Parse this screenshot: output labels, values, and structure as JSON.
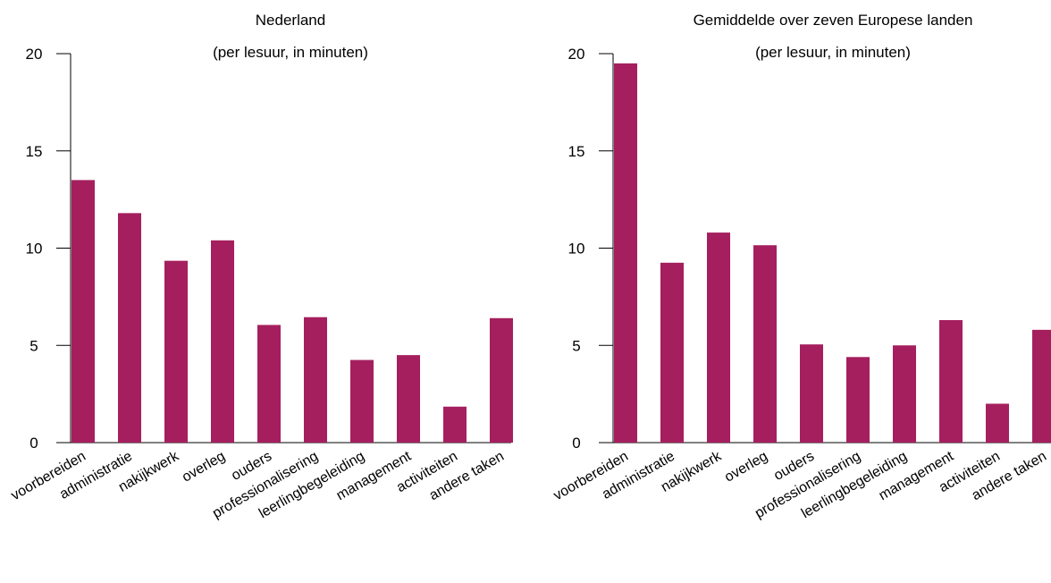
{
  "colors": {
    "bar": "#a51f5e"
  },
  "chart_data": [
    {
      "type": "bar",
      "title": "Nederland",
      "subtitle": "(per lesuur, in minuten)",
      "categories": [
        "voorbereiden",
        "administratie",
        "nakijkwerk",
        "overleg",
        "ouders",
        "professionalisering",
        "leerlingbegeleiding",
        "management",
        "activiteiten",
        "andere taken"
      ],
      "values": [
        13.5,
        11.8,
        9.35,
        10.4,
        6.05,
        6.45,
        4.25,
        4.5,
        1.85,
        6.4
      ],
      "yticks": [
        0,
        5,
        10,
        15,
        20
      ],
      "ylim": [
        0,
        20
      ],
      "grid": false
    },
    {
      "type": "bar",
      "title": "Gemiddelde over zeven Europese landen",
      "subtitle": "(per lesuur, in minuten)",
      "categories": [
        "voorbereiden",
        "administratie",
        "nakijkwerk",
        "overleg",
        "ouders",
        "professionalisering",
        "leerlingbegeleiding",
        "management",
        "activiteiten",
        "andere taken"
      ],
      "values": [
        19.5,
        9.25,
        10.8,
        10.15,
        5.05,
        4.4,
        5.0,
        6.3,
        2.0,
        5.8
      ],
      "yticks": [
        0,
        5,
        10,
        15,
        20
      ],
      "ylim": [
        0,
        20
      ],
      "grid": false
    }
  ]
}
